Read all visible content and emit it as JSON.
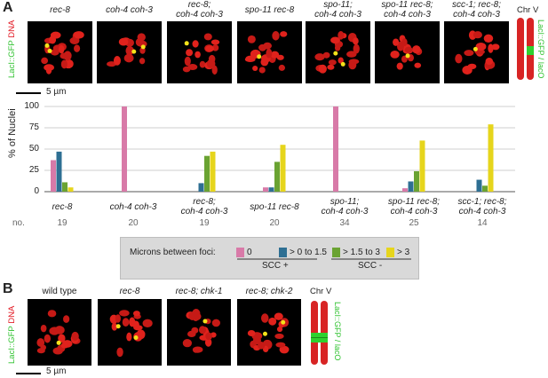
{
  "panels": {
    "A": {
      "letter": "A",
      "side_label_green": "LacI::GFP",
      "side_label_red": "DNA",
      "images": [
        {
          "label_line1": "rec-8",
          "label_line2": ""
        },
        {
          "label_line1": "coh-4 coh-3",
          "label_line2": ""
        },
        {
          "label_line1": "rec-8;",
          "label_line2": "coh-4 coh-3"
        },
        {
          "label_line1": "spo-11 rec-8",
          "label_line2": ""
        },
        {
          "label_line1": "spo-11;",
          "label_line2": "coh-4 coh-3"
        },
        {
          "label_line1": "spo-11 rec-8;",
          "label_line2": "coh-4 coh-3"
        },
        {
          "label_line1": "scc-1; rec-8;",
          "label_line2": "coh-4 coh-3"
        }
      ],
      "chr_label": "Chr V",
      "chr_side_label": "LacI::GFP / lacO",
      "scale_bar": "5 µm",
      "count_label": "no."
    },
    "B": {
      "letter": "B",
      "side_label_green": "LacI::GFP",
      "side_label_red": "DNA",
      "images": [
        {
          "label": "wild type"
        },
        {
          "label": "rec-8"
        },
        {
          "label": "rec-8; chk-1"
        },
        {
          "label": "rec-8; chk-2"
        }
      ],
      "chr_label": "Chr V",
      "chr_side_label": "LacI::GFP / lacO",
      "scale_bar": "5 µm"
    }
  },
  "legend": {
    "title": "Microns between foci:",
    "items": [
      {
        "label": "0",
        "color": "#d87aa8"
      },
      {
        "label": "> 0 to 1.5",
        "color": "#2e6f93"
      },
      {
        "label": "> 1.5 to 3",
        "color": "#6aa332"
      },
      {
        "label": "> 3",
        "color": "#e6d51c"
      }
    ],
    "groups": [
      "SCC +",
      "SCC -"
    ]
  },
  "chart_data": {
    "type": "bar",
    "ylabel": "% of Nuclei",
    "ylim": [
      0,
      100
    ],
    "yticks": [
      0,
      25,
      50,
      75,
      100
    ],
    "grid": true,
    "categories": [
      {
        "line1": "rec-8",
        "line2": ""
      },
      {
        "line1": "coh-4 coh-3",
        "line2": ""
      },
      {
        "line1": "rec-8;",
        "line2": "coh-4 coh-3"
      },
      {
        "line1": "spo-11 rec-8",
        "line2": ""
      },
      {
        "line1": "spo-11;",
        "line2": "coh-4 coh-3"
      },
      {
        "line1": "spo-11 rec-8;",
        "line2": "coh-4 coh-3"
      },
      {
        "line1": "scc-1; rec-8;",
        "line2": "coh-4 coh-3"
      }
    ],
    "counts": [
      "19",
      "20",
      "19",
      "20",
      "34",
      "25",
      "14"
    ],
    "series": [
      {
        "name": "0",
        "color": "#d87aa8",
        "values": [
          37,
          100,
          0,
          5,
          100,
          4,
          0
        ]
      },
      {
        "name": "> 0 to 1.5",
        "color": "#2e6f93",
        "values": [
          47,
          0,
          10,
          5,
          0,
          12,
          14
        ]
      },
      {
        "name": "> 1.5 to 3",
        "color": "#6aa332",
        "values": [
          11,
          0,
          42,
          35,
          0,
          24,
          7
        ]
      },
      {
        "name": "> 3",
        "color": "#e6d51c",
        "values": [
          5,
          0,
          47,
          55,
          0,
          60,
          79
        ]
      }
    ]
  }
}
